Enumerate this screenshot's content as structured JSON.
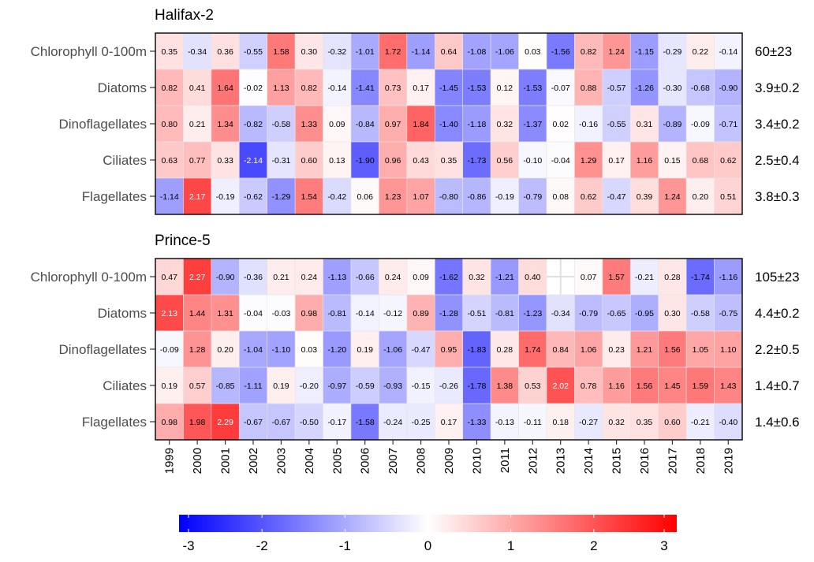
{
  "chart_data": {
    "type": "heatmap",
    "years": [
      "1999",
      "2000",
      "2001",
      "2002",
      "2003",
      "2004",
      "2005",
      "2006",
      "2007",
      "2008",
      "2009",
      "2010",
      "2011",
      "2012",
      "2013",
      "2014",
      "2015",
      "2016",
      "2017",
      "2018",
      "2019"
    ],
    "rows": [
      "Chlorophyll 0-100m",
      "Diatoms",
      "Dinoflagellates",
      "Ciliates",
      "Flagellates"
    ],
    "panels": [
      {
        "title": "Halifax-2",
        "summary": [
          "60±23",
          "3.9±0.2",
          "3.4±0.2",
          "2.5±0.4",
          "3.8±0.3"
        ],
        "values": [
          [
            0.35,
            -0.34,
            0.36,
            -0.55,
            1.58,
            0.3,
            -0.32,
            -1.01,
            1.72,
            -1.14,
            0.64,
            -1.08,
            -1.06,
            0.03,
            -1.56,
            0.82,
            1.24,
            -1.15,
            -0.29,
            0.22,
            -0.14
          ],
          [
            0.82,
            0.41,
            1.64,
            -0.02,
            1.13,
            0.82,
            -0.14,
            -1.41,
            0.73,
            0.17,
            -1.45,
            -1.53,
            0.12,
            -1.53,
            -0.07,
            0.88,
            -0.57,
            -1.26,
            -0.3,
            -0.68,
            -0.9
          ],
          [
            0.8,
            0.21,
            1.34,
            -0.82,
            -0.58,
            1.33,
            0.09,
            -0.84,
            0.97,
            1.84,
            -1.4,
            -1.18,
            0.32,
            -1.37,
            0.02,
            -0.16,
            -0.55,
            0.31,
            -0.89,
            -0.09,
            -0.71
          ],
          [
            0.63,
            0.77,
            0.33,
            -2.14,
            -0.31,
            0.6,
            0.13,
            -1.9,
            0.96,
            0.43,
            0.35,
            -1.73,
            0.56,
            -0.1,
            -0.04,
            1.29,
            0.17,
            1.16,
            0.15,
            0.68,
            0.62
          ],
          [
            -1.14,
            2.17,
            -0.19,
            -0.62,
            -1.29,
            1.54,
            -0.42,
            0.06,
            1.23,
            1.07,
            -0.8,
            -0.86,
            -0.19,
            -0.79,
            0.08,
            0.62,
            -0.47,
            0.39,
            1.24,
            0.2,
            0.51
          ]
        ]
      },
      {
        "title": "Prince-5",
        "summary": [
          "105±23",
          "4.4±0.2",
          "2.2±0.5",
          "1.4±0.7",
          "1.4±0.6"
        ],
        "values": [
          [
            0.47,
            2.27,
            -0.9,
            -0.36,
            0.21,
            0.24,
            -1.13,
            -0.66,
            0.24,
            0.09,
            -1.62,
            0.32,
            -1.21,
            0.4,
            null,
            0.07,
            1.57,
            -0.21,
            0.28,
            -1.74,
            -1.16
          ],
          [
            2.13,
            1.44,
            1.31,
            -0.04,
            -0.03,
            0.98,
            -0.81,
            -0.14,
            -0.12,
            0.89,
            -1.28,
            -0.51,
            -0.81,
            -1.23,
            -0.34,
            -0.79,
            -0.65,
            -0.95,
            0.3,
            -0.58,
            -0.75
          ],
          [
            -0.09,
            1.28,
            0.2,
            -1.04,
            -1.1,
            0.03,
            -1.2,
            0.19,
            -1.06,
            -0.47,
            0.95,
            -1.83,
            0.28,
            1.74,
            0.84,
            1.06,
            0.23,
            1.21,
            1.56,
            1.05,
            1.1
          ],
          [
            0.19,
            0.57,
            -0.85,
            -1.11,
            0.19,
            -0.2,
            -0.97,
            -0.59,
            -0.93,
            -0.15,
            -0.26,
            -1.78,
            1.38,
            0.53,
            2.02,
            0.78,
            1.16,
            1.56,
            1.45,
            1.59,
            1.43
          ],
          [
            0.98,
            1.98,
            2.29,
            -0.67,
            -0.67,
            -0.5,
            -0.17,
            -1.58,
            -0.24,
            -0.25,
            0.17,
            -1.33,
            -0.13,
            -0.11,
            0.18,
            -0.27,
            0.32,
            0.35,
            0.6,
            -0.21,
            -0.4
          ]
        ]
      }
    ],
    "colorbar": {
      "range": [
        -3,
        3
      ],
      "ticks": [
        "-3",
        "-2",
        "-1",
        "0",
        "1",
        "2",
        "3"
      ],
      "low_color": "#0000ff",
      "mid_color": "#ffffff",
      "high_color": "#ff0000"
    }
  }
}
